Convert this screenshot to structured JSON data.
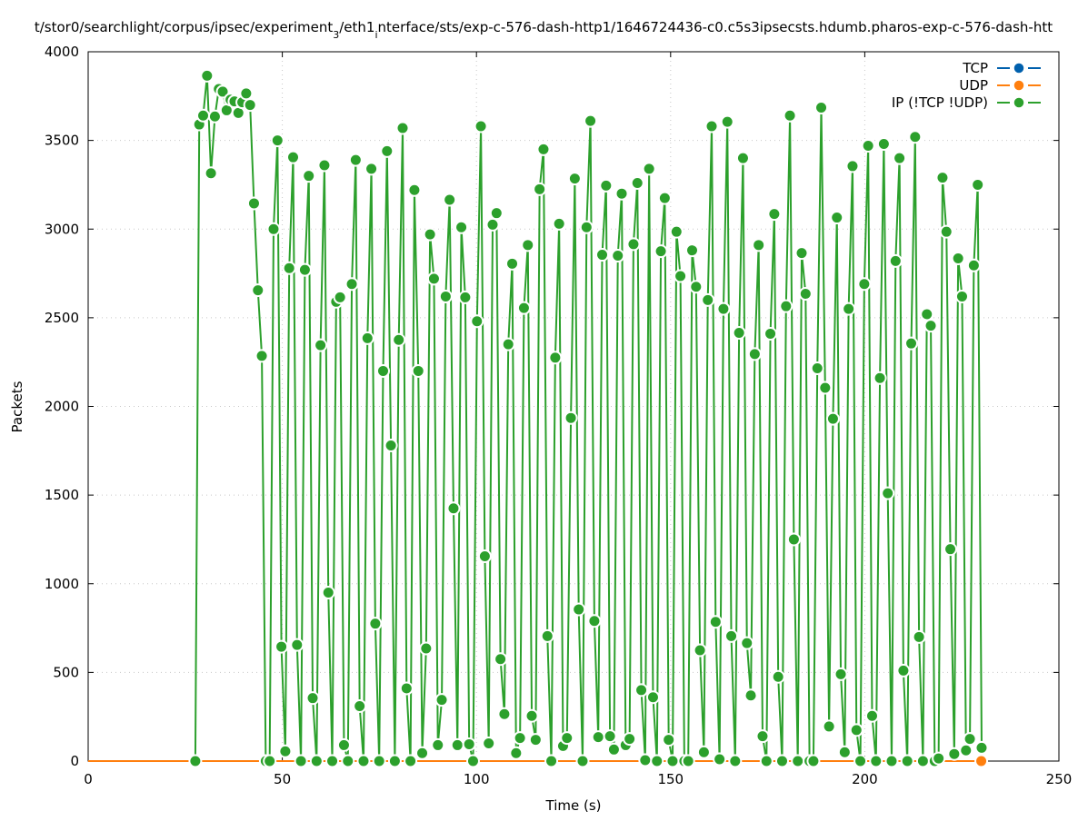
{
  "chart_data": {
    "type": "line",
    "title_parts": [
      "t/stor0/searchlight/corpus/ipsec/experiment",
      "3",
      "/eth1",
      "i",
      "nterface/sts/exp-c-576-dash-http1/1646724436-c0.c5s3ipsecsts.hdumb.pharos-exp-c-576-dash-htt"
    ],
    "xlabel": "Time (s)",
    "ylabel": "Packets",
    "xlim": [
      0,
      250
    ],
    "ylim": [
      0,
      4000
    ],
    "xticks": [
      "0",
      "50",
      "100",
      "150",
      "200",
      "250"
    ],
    "yticks": [
      "0",
      "500",
      "1000",
      "1500",
      "2000",
      "2500",
      "3000",
      "3500",
      "4000"
    ],
    "grid": true,
    "legend_position": "top-right",
    "series": [
      {
        "name": "TCP",
        "color": "#0060ad",
        "t_first": 0,
        "t_last": 230,
        "values": [
          0,
          0
        ]
      },
      {
        "name": "UDP",
        "color": "#ff7f0e",
        "t_first": 0,
        "t_last": 230,
        "values": [
          0,
          0
        ]
      },
      {
        "name": "IP (!TCP  !UDP)",
        "color": "#2ca02c",
        "t_first": 27.6,
        "t_last": 230.1,
        "values": [
          0,
          3590,
          3640,
          3865,
          3315,
          3635,
          3790,
          3775,
          3670,
          3730,
          3720,
          3655,
          3715,
          3765,
          3700,
          3145,
          2655,
          2285,
          0,
          0,
          3000,
          3500,
          645,
          55,
          2780,
          3405,
          655,
          0,
          2770,
          3300,
          355,
          0,
          2345,
          3360,
          950,
          0,
          2590,
          2615,
          90,
          0,
          2690,
          3390,
          310,
          0,
          2385,
          3340,
          775,
          0,
          2200,
          3440,
          1780,
          0,
          2375,
          3570,
          410,
          0,
          3220,
          2200,
          45,
          635,
          2970,
          2720,
          90,
          345,
          2620,
          3165,
          1425,
          90,
          3010,
          2615,
          95,
          0,
          2480,
          3580,
          1155,
          100,
          3025,
          3090,
          575,
          265,
          2350,
          2805,
          45,
          130,
          2555,
          2910,
          255,
          120,
          3225,
          3450,
          705,
          0,
          2275,
          3030,
          85,
          130,
          1935,
          3285,
          855,
          0,
          3010,
          3610,
          790,
          135,
          2855,
          3245,
          140,
          65,
          2850,
          3200,
          90,
          125,
          2915,
          3260,
          400,
          5,
          3340,
          360,
          0,
          2875,
          3175,
          120,
          0,
          2985,
          2735,
          0,
          0,
          2880,
          2675,
          625,
          50,
          2600,
          3580,
          785,
          10,
          2550,
          3605,
          705,
          0,
          2415,
          3400,
          665,
          370,
          2295,
          2910,
          140,
          0,
          2410,
          3085,
          475,
          0,
          2565,
          3640,
          1250,
          0,
          2865,
          2635,
          0,
          0,
          2215,
          3685,
          2105,
          195,
          1930,
          3065,
          490,
          50,
          2550,
          3355,
          175,
          0,
          2690,
          3470,
          255,
          0,
          2160,
          3480,
          1510,
          0,
          2820,
          3400,
          510,
          0,
          2355,
          3520,
          700,
          0,
          2520,
          2455,
          0,
          15,
          3290,
          2985,
          1195,
          40,
          2835,
          2620,
          60,
          125,
          2795,
          3250,
          75
        ]
      }
    ]
  }
}
